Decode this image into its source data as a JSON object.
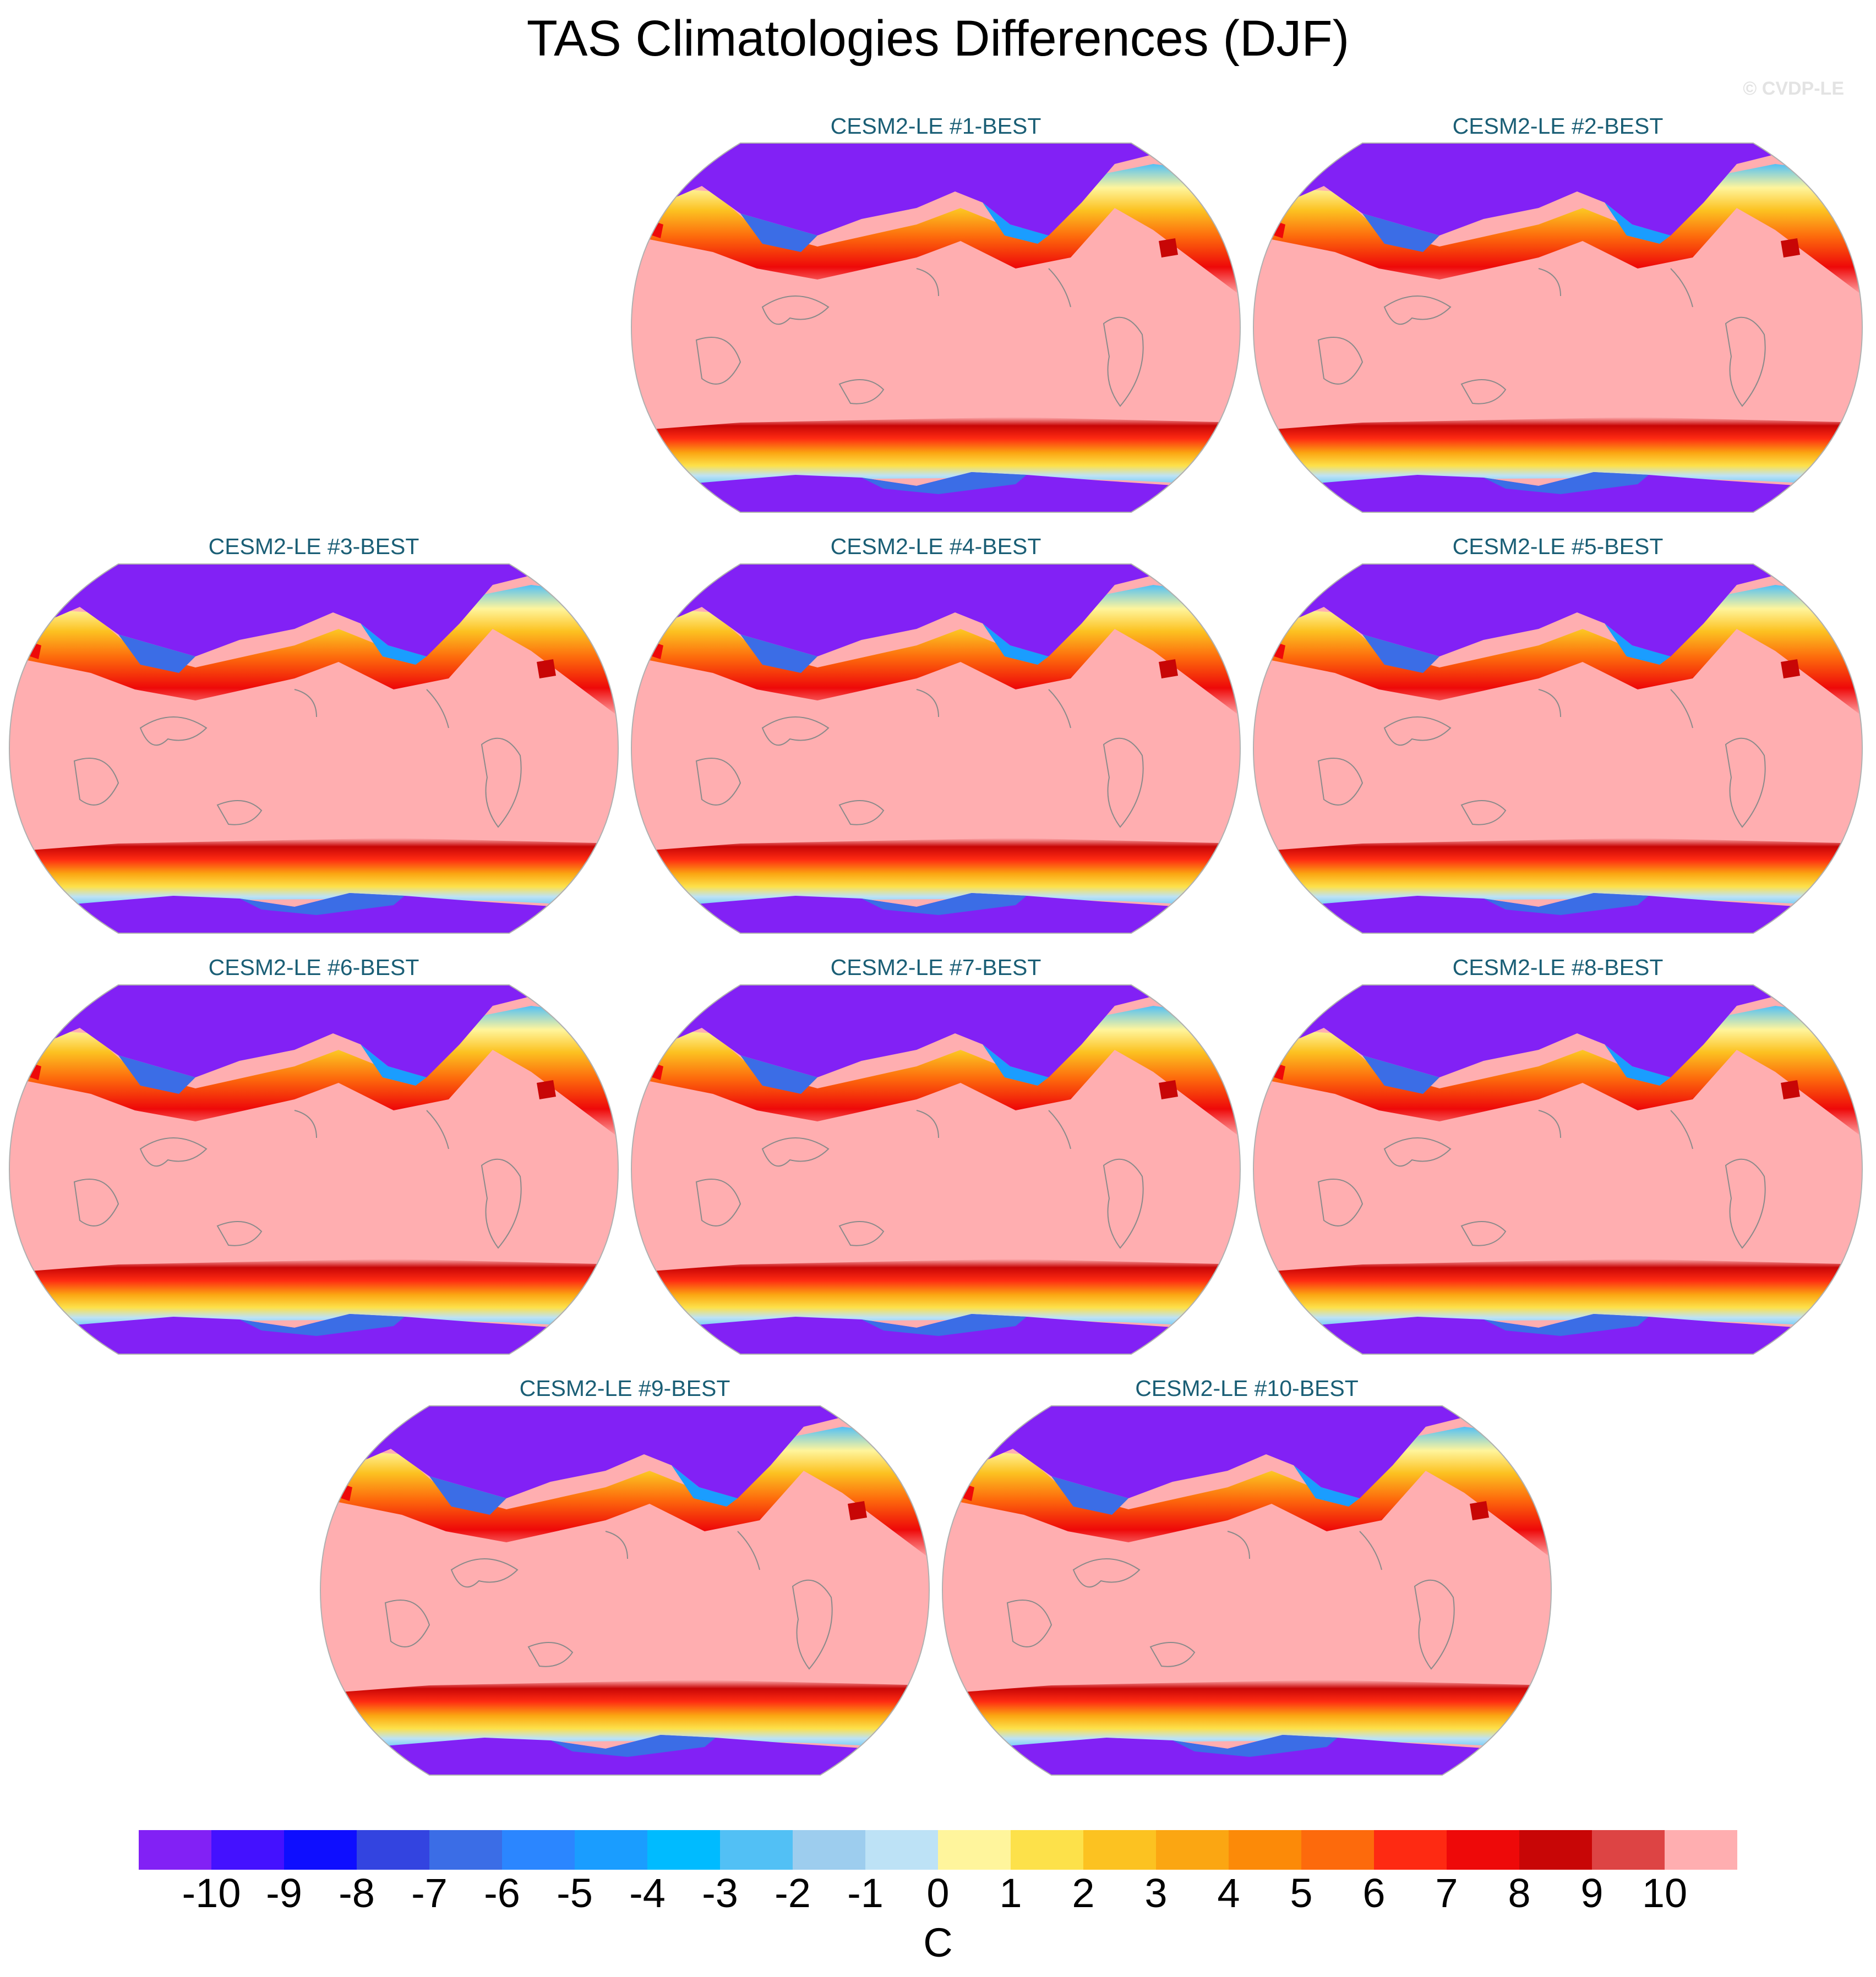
{
  "title": "TAS Climatologies Differences (DJF)",
  "copyright": "© CVDP-LE",
  "panels": [
    {
      "label": "CESM2-LE #1-BEST"
    },
    {
      "label": "CESM2-LE #2-BEST"
    },
    {
      "label": "CESM2-LE #3-BEST"
    },
    {
      "label": "CESM2-LE #4-BEST"
    },
    {
      "label": "CESM2-LE #5-BEST"
    },
    {
      "label": "CESM2-LE #6-BEST"
    },
    {
      "label": "CESM2-LE #7-BEST"
    },
    {
      "label": "CESM2-LE #8-BEST"
    },
    {
      "label": "CESM2-LE #9-BEST"
    },
    {
      "label": "CESM2-LE #10-BEST"
    }
  ],
  "colorbar": {
    "units": "C",
    "ticks": [
      "-10",
      "-9",
      "-8",
      "-7",
      "-6",
      "-5",
      "-4",
      "-3",
      "-2",
      "-1",
      "0",
      "1",
      "2",
      "3",
      "4",
      "5",
      "6",
      "7",
      "8",
      "9",
      "10"
    ],
    "colors": [
      "#8221f5",
      "#4411ff",
      "#0e0eff",
      "#3344e0",
      "#3b6de6",
      "#2b86ff",
      "#1a9dff",
      "#00bbff",
      "#52c0f5",
      "#9dcdee",
      "#bde2f6",
      "#fff59c",
      "#fde14a",
      "#fcc221",
      "#fba612",
      "#fc8a08",
      "#fd6a0c",
      "#fe2a12",
      "#ee0909",
      "#c80606",
      "#dd4444",
      "#ffaeb0"
    ]
  },
  "chart_data": {
    "type": "heatmap",
    "projection": "Robinson (Pacific-centered)",
    "variable": "TAS",
    "season": "DJF",
    "units": "C",
    "levels": [
      -10,
      -9,
      -8,
      -7,
      -6,
      -5,
      -4,
      -3,
      -2,
      -1,
      0,
      1,
      2,
      3,
      4,
      5,
      6,
      7,
      8,
      9,
      10
    ],
    "panel_count": 10,
    "pattern_note": "Values above 10 over most of the globe; below -10 over high-latitude land (Eurasia, North America) and Antarctica; transition bands of 1 to 10 along ~35N and ~50S"
  }
}
